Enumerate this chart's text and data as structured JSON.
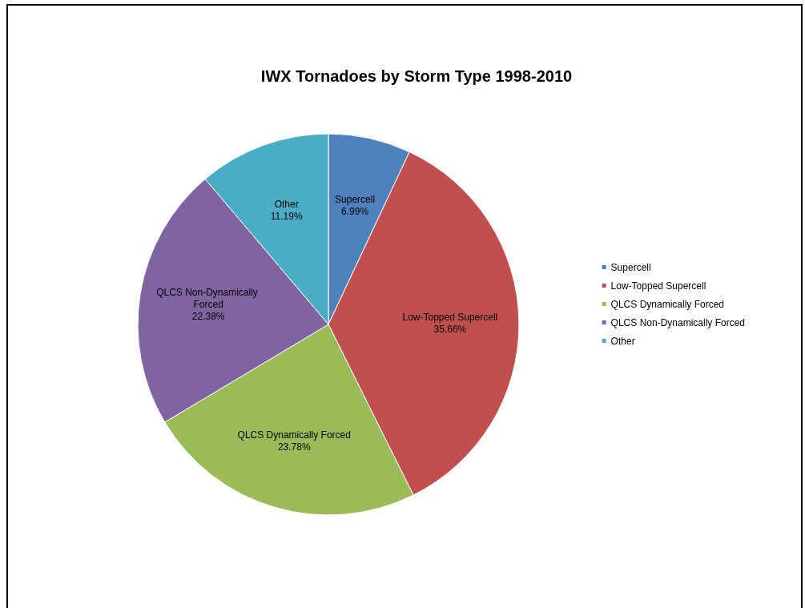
{
  "chart_data": {
    "type": "pie",
    "title": "IWX Tornadoes by Storm Type 1998-2010",
    "categories": [
      "Supercell",
      "Low-Topped Supercell",
      "QLCS Dynamically Forced",
      "QLCS Non-Dynamically Forced",
      "Other"
    ],
    "values": [
      6.99,
      35.66,
      23.78,
      22.38,
      11.19
    ],
    "colors": [
      "#4f81bd",
      "#c0504d",
      "#9bbb59",
      "#8064a2",
      "#4bacc6"
    ],
    "value_labels": [
      "6.99%",
      "35.66%",
      "23.78%",
      "22.38%",
      "11.19%"
    ],
    "legend": "right"
  }
}
